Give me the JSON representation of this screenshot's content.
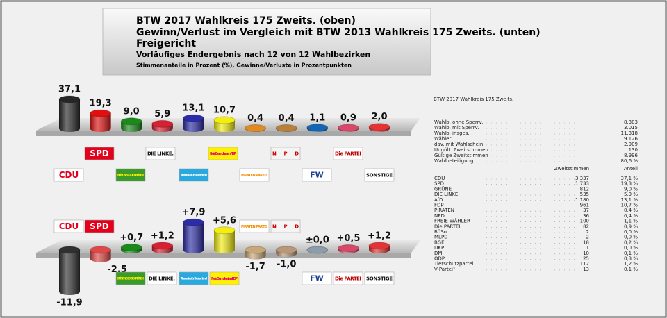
{
  "header": {
    "lines": [
      "BTW 2017 Wahlkreis 175 Zweits. (oben)",
      "Gewinn/Verlust im Vergleich mit BTW 2013 Wahlkreis 175 Zweits. (unten)",
      "Freigericht",
      "Vorläufiges Endergebnis nach 12 von 12 Wahlbezirken",
      "Stimmenanteile in Prozent (%), Gewinne/Verluste in Prozentpunkten"
    ]
  },
  "chart_data": [
    {
      "type": "bar3d",
      "categories": [
        "CDU",
        "SPD",
        "BÜNDNIS 90 DIE GRÜNEN",
        "DIE LINKE.",
        "Alternative für Deutschland",
        "Freie Demokraten FDP",
        "PIRATEN PARTEI",
        "NPD",
        "FW",
        "Die PARTEI",
        "SONSTIGE"
      ],
      "values": [
        37.1,
        19.3,
        9.0,
        5.9,
        13.1,
        10.7,
        0.4,
        0.4,
        1.1,
        0.9,
        2.0
      ],
      "value_labels": [
        "37,1",
        "19,3",
        "9,0",
        "5,9",
        "13,1",
        "10,7",
        "0,4",
        "0,4",
        "1,1",
        "0,9",
        "2,0"
      ],
      "colors": [
        "#262626",
        "#e01010",
        "#1a8a1a",
        "#d82030",
        "#2c2ca8",
        "#f2ee10",
        "#e08a20",
        "#b8803a",
        "#1466b4",
        "#d84868",
        "#e23434"
      ]
    },
    {
      "type": "bar3d",
      "categories": [
        "CDU",
        "SPD",
        "BÜNDNIS 90 DIE GRÜNEN",
        "DIE LINKE.",
        "Alternative für Deutschland",
        "Freie Demokraten FDP",
        "PIRATEN PARTEI",
        "NPD",
        "FW",
        "Die PARTEI",
        "SONSTIGE"
      ],
      "values": [
        -11.9,
        -2.5,
        0.7,
        1.2,
        7.9,
        5.6,
        -1.7,
        -1.0,
        0.0,
        0.5,
        1.2
      ],
      "value_labels": [
        "-11,9",
        "-2,5",
        "+0,7",
        "+1,2",
        "+7,9",
        "+5,6",
        "-1,7",
        "-1,0",
        "±0,0",
        "+0,5",
        "+1,2"
      ],
      "colors": [
        "#303030",
        "#e04848",
        "#1a8a1a",
        "#d82030",
        "#2c2ca8",
        "#f2ee10",
        "#c8a878",
        "#b89878",
        "#8c9cac",
        "#d84868",
        "#e23434"
      ]
    }
  ],
  "table": {
    "title": "BTW 2017 Wahlkreis 175 Zweits.",
    "summary": [
      [
        "Wahlb. ohne Sperrv.",
        "8.303"
      ],
      [
        "Wahlb. mit Sperrv.",
        "3.015"
      ],
      [
        "Wahlb. insges.",
        "11.318"
      ],
      [
        "Wähler",
        "9.126"
      ],
      [
        "dav. mit Wahlschein",
        "2.909"
      ],
      [
        "Ungült. Zweitstimmen",
        "130"
      ],
      [
        "Gültige Zweitstimmen",
        "8.996"
      ],
      [
        "Wahlbeteiligung",
        "80,6 %"
      ]
    ],
    "header": [
      "Zweitstimmen",
      "Anteil"
    ],
    "rows": [
      [
        "CDU",
        "3.337",
        "37,1 %"
      ],
      [
        "SPD",
        "1.733",
        "19,3 %"
      ],
      [
        "GRÜNE",
        "812",
        "9,0 %"
      ],
      [
        "DIE LINKE",
        "535",
        "5,9 %"
      ],
      [
        "AfD",
        "1.180",
        "13,1 %"
      ],
      [
        "FDP",
        "961",
        "10,7 %"
      ],
      [
        "PIRATEN",
        "37",
        "0,4 %"
      ],
      [
        "NPD",
        "36",
        "0,4 %"
      ],
      [
        "FREIE WÄHLER",
        "100",
        "1,1 %"
      ],
      [
        "Die PARTEI",
        "82",
        "0,9 %"
      ],
      [
        "BüSo",
        "2",
        "0,0 %"
      ],
      [
        "MLPD",
        "2",
        "0,0 %"
      ],
      [
        "BGE",
        "18",
        "0,2 %"
      ],
      [
        "DKP",
        "1",
        "0,0 %"
      ],
      [
        "DM",
        "10",
        "0,1 %"
      ],
      [
        "ÖDP",
        "25",
        "0,3 %"
      ],
      [
        "Tierschutzpartei",
        "112",
        "1,2 %"
      ],
      [
        "V-Partei³",
        "13",
        "0,1 %"
      ]
    ]
  }
}
